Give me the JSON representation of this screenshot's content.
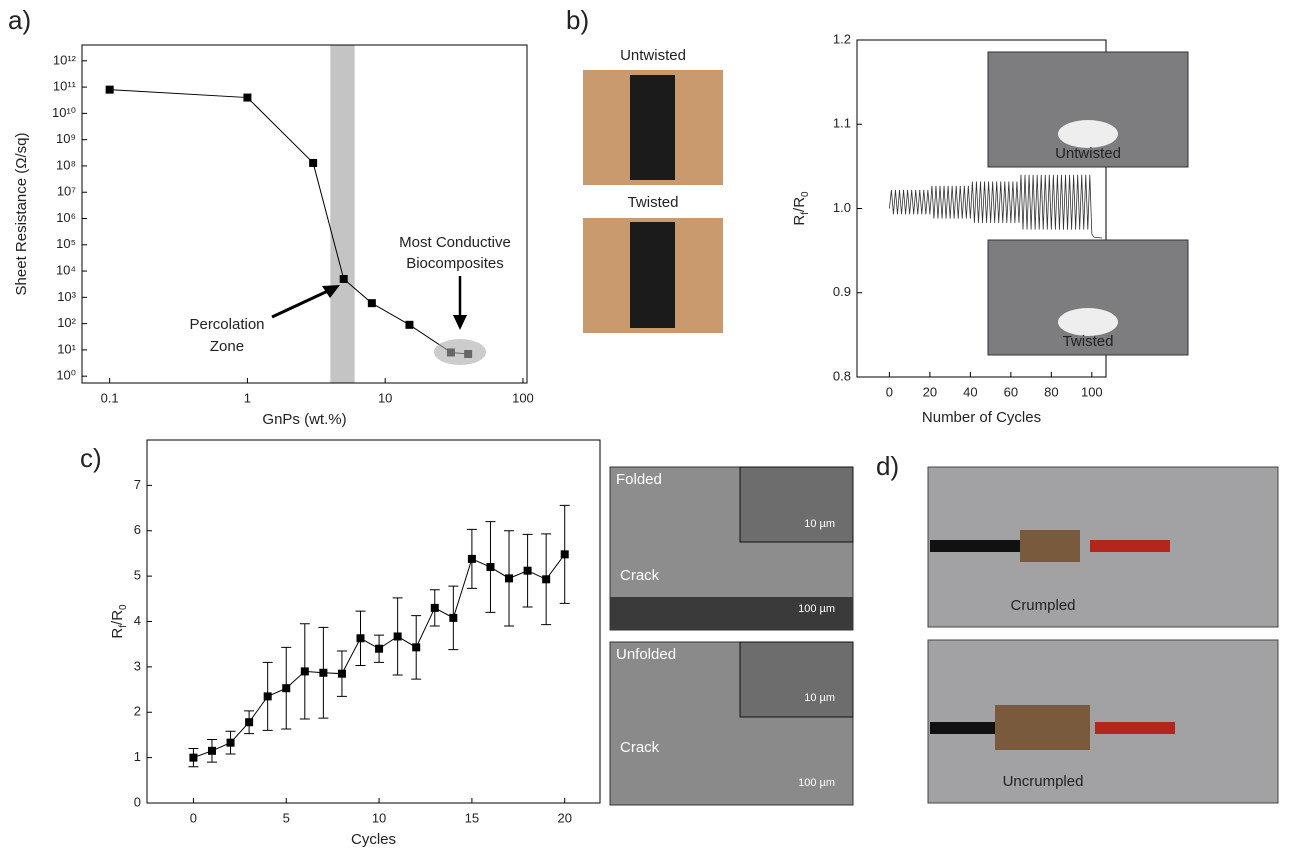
{
  "panel_labels": [
    "a)",
    "b)",
    "c)",
    "d)"
  ],
  "chart_data": [
    {
      "type": "line",
      "xscale": "log",
      "yscale": "log",
      "x_label": "GnPs (wt.%)",
      "y_label": "Sheet Resistance (Ω/sq)",
      "x": [
        0.1,
        1,
        3,
        5,
        8,
        15,
        30,
        40
      ],
      "series": [
        {
          "color": "#000000",
          "values": [
            80000000000,
            40000000000,
            130000000,
            5000,
            600,
            90,
            8,
            7
          ]
        }
      ],
      "xlim": [
        0.063,
        107
      ],
      "xticks": [
        0.1,
        1,
        10,
        100
      ],
      "ylim": [
        0.55,
        4000000000000
      ],
      "yticks": [
        {
          "value": 1,
          "label": "10⁰"
        },
        {
          "value": 10,
          "label": "10¹"
        },
        {
          "value": 100,
          "label": "10²"
        },
        {
          "value": 1000,
          "label": "10³"
        },
        {
          "value": 10000,
          "label": "10⁴"
        },
        {
          "value": 100000,
          "label": "10⁵"
        },
        {
          "value": 1000000,
          "label": "10⁶"
        },
        {
          "value": 10000000,
          "label": "10⁷"
        },
        {
          "value": 100000000,
          "label": "10⁸"
        },
        {
          "value": 1000000000,
          "label": "10⁹"
        },
        {
          "value": 10000000000,
          "label": "10¹⁰"
        },
        {
          "value": 100000000000,
          "label": "10¹¹"
        },
        {
          "value": 1000000000000,
          "label": "10¹²"
        }
      ],
      "highlight_x": [
        4,
        6
      ],
      "annotations": [
        "Percolation",
        "Zone",
        "Most Conductive",
        "Biocomposites"
      ]
    },
    {
      "type": "line",
      "x_label": "Number of Cycles",
      "y_label_parts": [
        "R",
        "f",
        "/R",
        "0"
      ],
      "x": [
        0,
        1,
        2,
        3,
        4,
        5,
        6,
        7,
        8,
        9,
        10,
        11,
        12,
        13,
        14,
        15,
        16,
        17,
        18,
        19,
        20,
        21,
        22,
        23,
        24,
        25,
        26,
        27,
        28,
        29,
        30,
        31,
        32,
        33,
        34,
        35,
        36,
        37,
        38,
        39,
        40,
        41,
        42,
        43,
        44,
        45,
        46,
        47,
        48,
        49,
        50,
        51,
        52,
        53,
        54,
        55,
        56,
        57,
        58,
        59,
        60,
        61,
        62,
        63,
        64,
        65,
        66,
        67,
        68,
        69,
        70,
        71,
        72,
        73,
        74,
        75,
        76,
        77,
        78,
        79,
        80,
        81,
        82,
        83,
        84,
        85,
        86,
        87,
        88,
        89,
        90,
        91,
        92,
        93,
        94,
        95,
        96,
        97,
        98,
        99,
        100,
        101,
        105
      ],
      "series": [
        {
          "color": "#333333",
          "values": [
            1.0,
            1.022,
            0.993,
            1.022,
            0.993,
            1.022,
            0.993,
            1.022,
            0.993,
            1.022,
            0.993,
            1.022,
            0.993,
            1.022,
            0.993,
            1.022,
            0.993,
            1.022,
            0.993,
            1.022,
            0.993,
            1.027,
            0.988,
            1.027,
            0.988,
            1.027,
            0.988,
            1.027,
            0.988,
            1.027,
            0.988,
            1.027,
            0.988,
            1.027,
            0.988,
            1.027,
            0.988,
            1.027,
            0.988,
            1.027,
            0.988,
            1.032,
            0.983,
            1.032,
            0.983,
            1.032,
            0.983,
            1.032,
            0.983,
            1.032,
            0.983,
            1.032,
            0.983,
            1.032,
            0.983,
            1.032,
            0.983,
            1.032,
            0.983,
            1.032,
            0.983,
            1.032,
            0.983,
            1.032,
            0.983,
            1.04,
            0.975,
            1.04,
            0.975,
            1.04,
            0.975,
            1.04,
            0.975,
            1.04,
            0.975,
            1.04,
            0.975,
            1.04,
            0.975,
            1.04,
            0.975,
            1.04,
            0.975,
            1.04,
            0.975,
            1.04,
            0.975,
            1.04,
            0.975,
            1.04,
            0.975,
            1.04,
            0.975,
            1.04,
            0.975,
            1.04,
            0.975,
            1.04,
            0.975,
            1.04,
            0.97,
            0.966,
            0.965
          ]
        }
      ],
      "xlim": [
        -16,
        107
      ],
      "xticks": [
        0,
        20,
        40,
        60,
        80,
        100
      ],
      "ylim": [
        0.8,
        1.2
      ],
      "yticks": [
        0.8,
        0.9,
        {
          "value": 1,
          "label": "1.0"
        },
        1.1,
        1.2
      ]
    },
    {
      "type": "line",
      "x_label": "Cycles",
      "y_label_parts": [
        "R",
        "f",
        "/R",
        "0"
      ],
      "x": [
        0,
        1,
        2,
        3,
        4,
        5,
        6,
        7,
        8,
        9,
        10,
        11,
        12,
        13,
        14,
        15,
        16,
        17,
        18,
        19,
        20
      ],
      "series": [
        {
          "color": "#000000",
          "values": [
            1.0,
            1.15,
            1.33,
            1.78,
            2.35,
            2.53,
            2.9,
            2.87,
            2.85,
            3.63,
            3.4,
            3.67,
            3.43,
            4.3,
            4.08,
            5.38,
            5.2,
            4.95,
            5.12,
            4.93,
            5.48
          ],
          "errors": [
            0.2,
            0.25,
            0.25,
            0.25,
            0.75,
            0.9,
            1.05,
            1.0,
            0.5,
            0.6,
            0.3,
            0.85,
            0.7,
            0.4,
            0.7,
            0.65,
            1.0,
            1.05,
            0.8,
            1.0,
            1.08
          ]
        }
      ],
      "xlim": [
        -2.5,
        21.9
      ],
      "xticks": [
        0,
        5,
        10,
        15,
        20
      ],
      "ylim": [
        0,
        8
      ],
      "yticks": [
        0,
        1,
        2,
        3,
        4,
        5,
        6,
        7
      ]
    }
  ],
  "photos": {
    "b_left": [
      "Untwisted",
      "Twisted"
    ],
    "b_inset": [
      "Untwisted",
      "Twisted"
    ],
    "c_sem": [
      {
        "state": "Folded",
        "feature": "Crack",
        "inset_scale": "10 µm",
        "scale": "100 µm"
      },
      {
        "state": "Unfolded",
        "feature": "Crack",
        "inset_scale": "10 µm",
        "scale": "100 µm"
      }
    ],
    "d": [
      "Crumpled",
      "Uncrumpled"
    ]
  }
}
